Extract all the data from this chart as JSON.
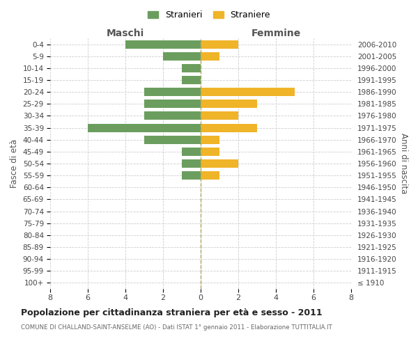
{
  "age_groups": [
    "0-4",
    "5-9",
    "10-14",
    "15-19",
    "20-24",
    "25-29",
    "30-34",
    "35-39",
    "40-44",
    "45-49",
    "50-54",
    "55-59",
    "60-64",
    "65-69",
    "70-74",
    "75-79",
    "80-84",
    "85-89",
    "90-94",
    "95-99",
    "100+"
  ],
  "birth_years": [
    "2006-2010",
    "2001-2005",
    "1996-2000",
    "1991-1995",
    "1986-1990",
    "1981-1985",
    "1976-1980",
    "1971-1975",
    "1966-1970",
    "1961-1965",
    "1956-1960",
    "1951-1955",
    "1946-1950",
    "1941-1945",
    "1936-1940",
    "1931-1935",
    "1926-1930",
    "1921-1925",
    "1916-1920",
    "1911-1915",
    "≤ 1910"
  ],
  "maschi": [
    4,
    2,
    1,
    1,
    3,
    3,
    3,
    6,
    3,
    1,
    1,
    1,
    0,
    0,
    0,
    0,
    0,
    0,
    0,
    0,
    0
  ],
  "femmine": [
    2,
    1,
    0,
    0,
    5,
    3,
    2,
    3,
    1,
    1,
    2,
    1,
    0,
    0,
    0,
    0,
    0,
    0,
    0,
    0,
    0
  ],
  "color_maschi": "#6b9e5e",
  "color_femmine": "#f0b429",
  "title": "Popolazione per cittadinanza straniera per età e sesso - 2011",
  "subtitle": "COMUNE DI CHALLAND-SAINT-ANSELME (AO) - Dati ISTAT 1° gennaio 2011 - Elaborazione TUTTITALIA.IT",
  "xlabel_left": "Maschi",
  "xlabel_right": "Femmine",
  "ylabel_left": "Fasce di età",
  "ylabel_right": "Anni di nascita",
  "legend_maschi": "Stranieri",
  "legend_femmine": "Straniere",
  "xlim": 8,
  "background_color": "#ffffff",
  "grid_color": "#cccccc"
}
